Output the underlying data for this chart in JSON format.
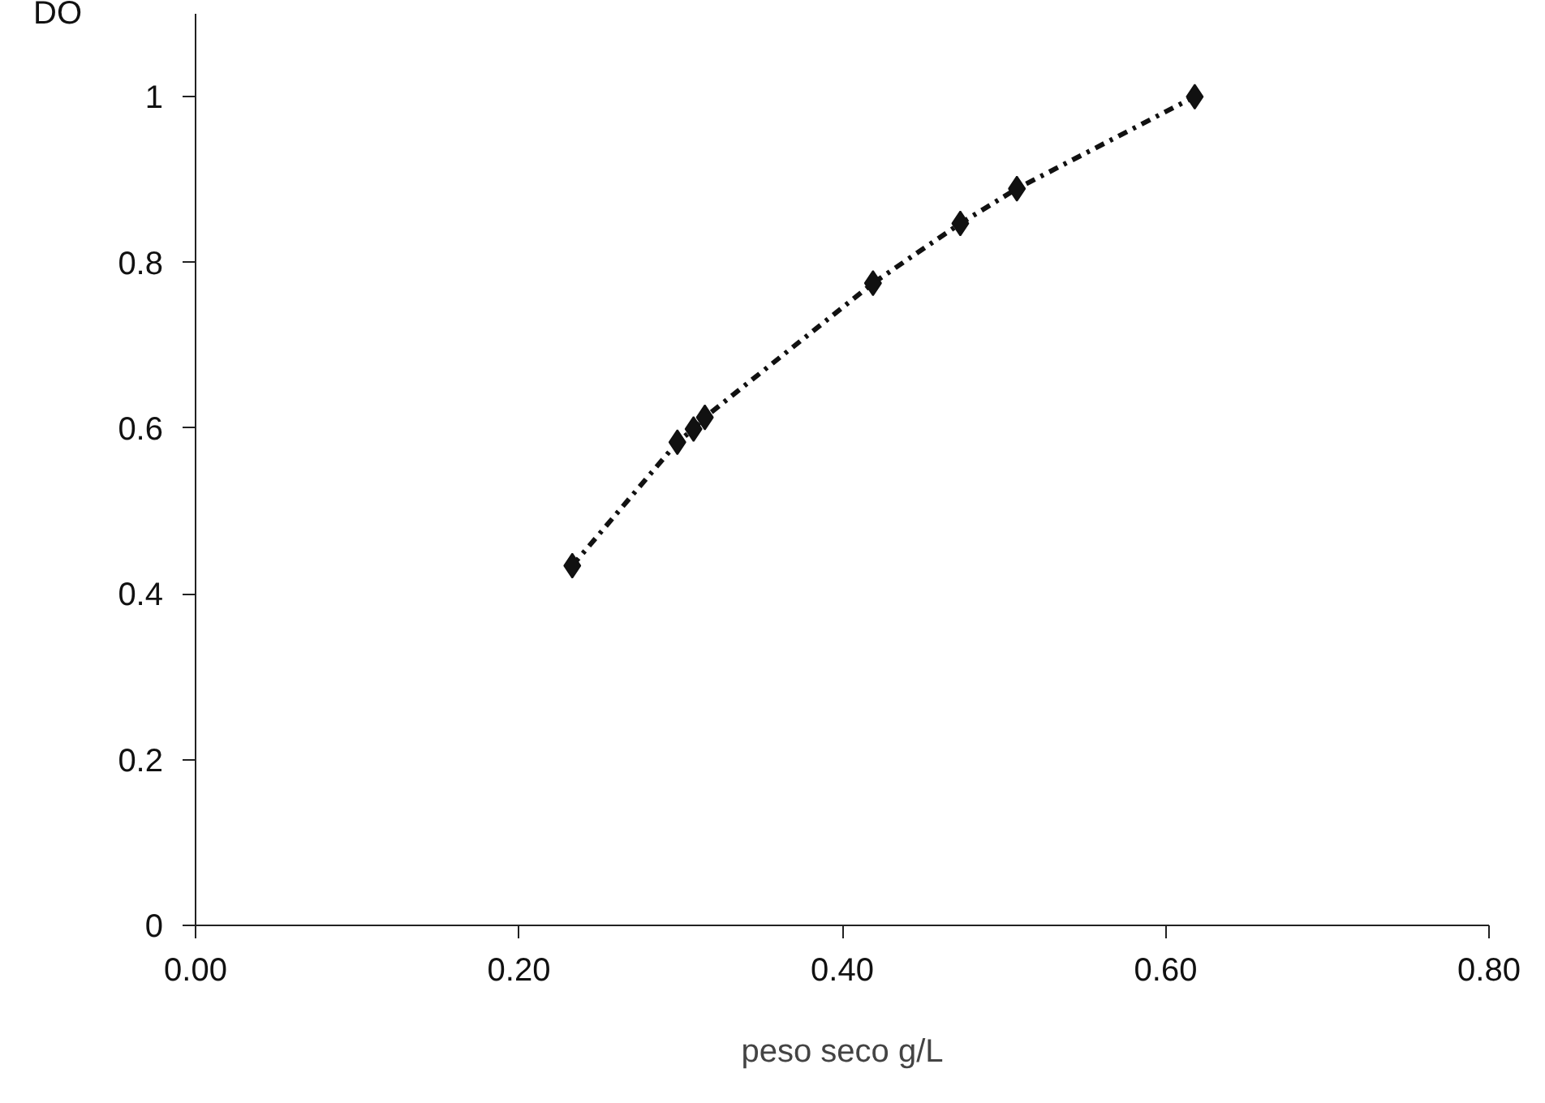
{
  "chart_data": {
    "type": "line",
    "xlabel": "peso seco g/L",
    "ylabel": "DO",
    "x": [
      0.233,
      0.298,
      0.308,
      0.315,
      0.419,
      0.473,
      0.508,
      0.618
    ],
    "series": [
      {
        "color": "#111111",
        "values": [
          0.434,
          0.583,
          0.599,
          0.613,
          0.775,
          0.847,
          0.889,
          1.0
        ]
      }
    ],
    "marker": "diamond",
    "line_style": "dashed",
    "grid": false,
    "xlim": [
      0,
      0.8
    ],
    "ylim": [
      0,
      1.1
    ],
    "xticks": [
      {
        "value": 0,
        "label": "0.00"
      },
      {
        "value": 0.2,
        "label": "0.20"
      },
      {
        "value": 0.4,
        "label": "0.40"
      },
      {
        "value": 0.6,
        "label": "0.60"
      },
      {
        "value": 0.8,
        "label": "0.80"
      }
    ],
    "yticks": [
      0,
      0.2,
      0.4,
      0.6,
      0.8,
      1
    ]
  }
}
